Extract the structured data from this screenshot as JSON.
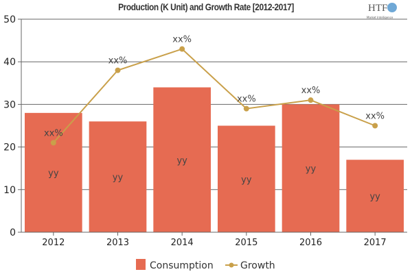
{
  "chart_data": {
    "type": "bar",
    "title": "Production (K Unit) and Growth Rate [2012-2017]",
    "categories": [
      "2012",
      "2013",
      "2014",
      "2015",
      "2016",
      "2017"
    ],
    "ylim": [
      0,
      50
    ],
    "yticks": [
      "0",
      "10",
      "20",
      "30",
      "40",
      "50"
    ],
    "grid": true,
    "legend": "bottom",
    "series": [
      {
        "name": "Consumption",
        "type": "bar",
        "color": "#e66b52",
        "values": [
          28,
          26,
          34,
          25,
          30,
          17
        ],
        "labels": [
          "yy",
          "yy",
          "yy",
          "yy",
          "yy",
          "yy"
        ]
      },
      {
        "name": "Growth",
        "type": "line",
        "color": "#c9a04a",
        "values": [
          21,
          38,
          43,
          29,
          31,
          25
        ],
        "labels": [
          "xx%",
          "xx%",
          "xx%",
          "xx%",
          "xx%",
          "xx%"
        ]
      }
    ]
  },
  "logo": {
    "text": "HTF",
    "subtext": "Market Intelligence"
  }
}
